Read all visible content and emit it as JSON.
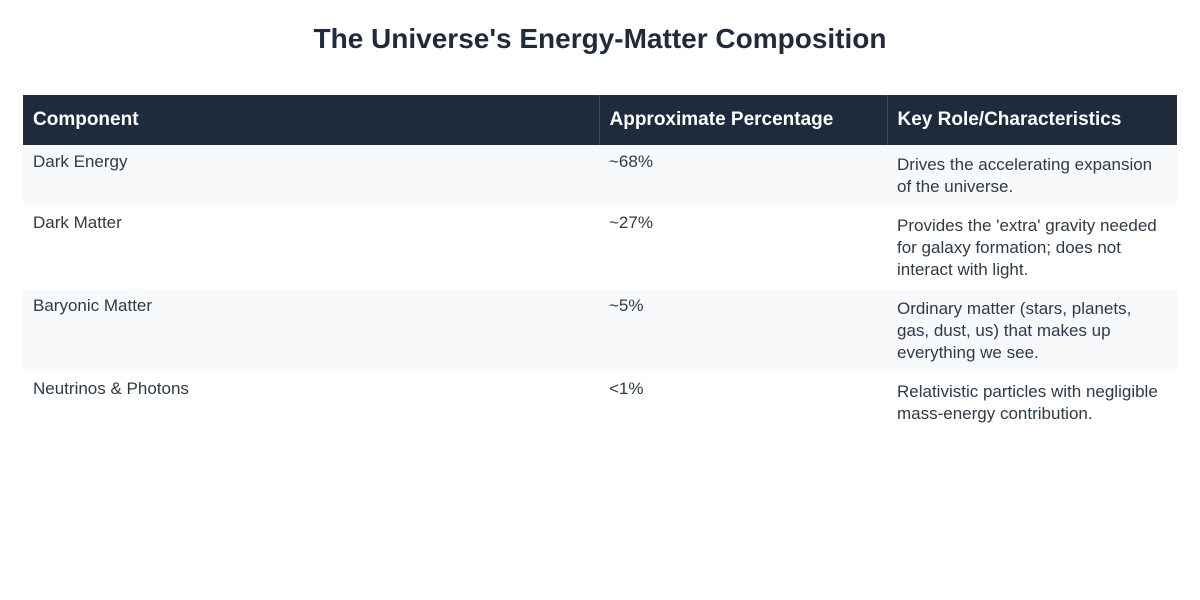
{
  "title": "The Universe's Energy-Matter Composition",
  "table": {
    "headers": [
      "Component",
      "Approximate Percentage",
      "Key Role/Characteristics"
    ],
    "rows": [
      {
        "component": "Dark Energy",
        "percentage": "~68%",
        "role": "Drives the accelerating expansion of the universe."
      },
      {
        "component": "Dark Matter",
        "percentage": "~27%",
        "role": "Provides the 'extra' gravity needed for galaxy formation; does not interact with light."
      },
      {
        "component": "Baryonic Matter",
        "percentage": "~5%",
        "role": "Ordinary matter (stars, planets, gas, dust, us) that makes up everything we see."
      },
      {
        "component": "Neutrinos & Photons",
        "percentage": "<1%",
        "role": "Relativistic particles with negligible mass-energy contribution."
      }
    ]
  },
  "colors": {
    "header_background": "#1f2a3c",
    "header_text": "#ffffff",
    "title_text": "#1f2a3c",
    "body_text": "#2f3a48",
    "striped_row": "#f8f9fb"
  }
}
